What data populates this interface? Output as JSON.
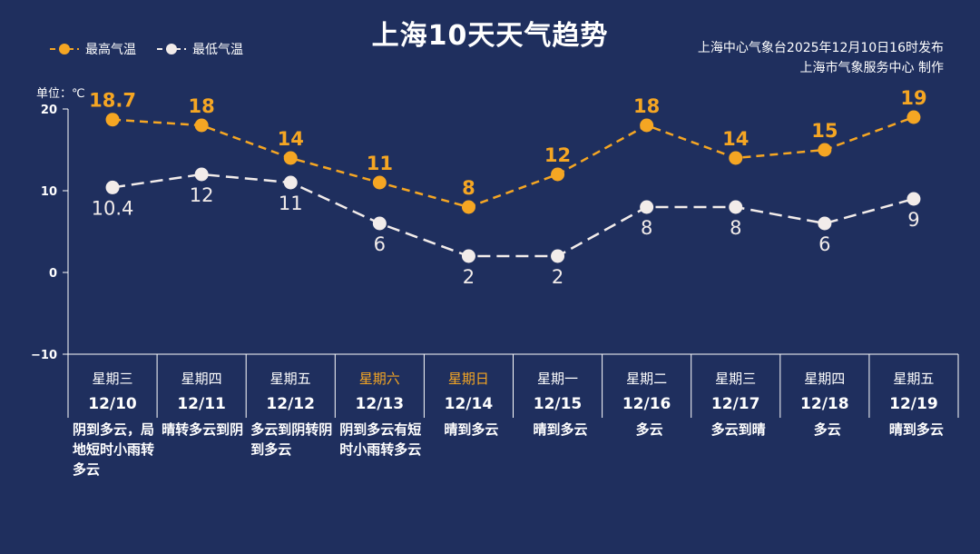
{
  "title": "上海10天天气趋势",
  "source_line1": "上海中心气象台2025年12月10日16时发布",
  "source_line2": "上海市气象服务中心 制作",
  "unit_label": "单位：℃",
  "colors": {
    "background": "#1f2f5e",
    "high": "#f5a623",
    "low": "#f2ecea",
    "text": "#ffffff",
    "weekend": "#f5a623"
  },
  "chart_data": {
    "type": "line",
    "title": "上海10天天气趋势",
    "ylabel": "单位：℃",
    "ylim": [
      -10,
      20
    ],
    "yticks": [
      "20",
      "10",
      "0",
      "−10"
    ],
    "grid": false,
    "legend_position": "top-left",
    "categories": [
      "12/10",
      "12/11",
      "12/12",
      "12/13",
      "12/14",
      "12/15",
      "12/16",
      "12/17",
      "12/18",
      "12/19"
    ],
    "series": [
      {
        "name": "最高气温",
        "color": "#f5a623",
        "values": [
          18.7,
          18,
          14,
          11,
          8,
          12,
          18,
          14,
          15,
          19
        ],
        "labels": [
          "18.7",
          "18",
          "14",
          "11",
          "8",
          "12",
          "18",
          "14",
          "15",
          "19"
        ]
      },
      {
        "name": "最低气温",
        "color": "#f2ecea",
        "values": [
          10.4,
          12,
          11,
          6,
          2,
          2,
          8,
          8,
          6,
          9
        ],
        "labels": [
          "10.4",
          "12",
          "11",
          "6",
          "2",
          "2",
          "8",
          "8",
          "6",
          "9"
        ]
      }
    ]
  },
  "days": [
    {
      "weekday": "星期三",
      "date": "12/10",
      "condition": "阴到多云，局地短时小雨转多云",
      "weekend": false
    },
    {
      "weekday": "星期四",
      "date": "12/11",
      "condition": "晴转多云到阴",
      "weekend": false
    },
    {
      "weekday": "星期五",
      "date": "12/12",
      "condition": "多云到阴转阴到多云",
      "weekend": false
    },
    {
      "weekday": "星期六",
      "date": "12/13",
      "condition": "阴到多云有短时小雨转多云",
      "weekend": true
    },
    {
      "weekday": "星期日",
      "date": "12/14",
      "condition": "晴到多云",
      "weekend": true
    },
    {
      "weekday": "星期一",
      "date": "12/15",
      "condition": "晴到多云",
      "weekend": false
    },
    {
      "weekday": "星期二",
      "date": "12/16",
      "condition": "多云",
      "weekend": false
    },
    {
      "weekday": "星期三",
      "date": "12/17",
      "condition": "多云到晴",
      "weekend": false
    },
    {
      "weekday": "星期四",
      "date": "12/18",
      "condition": "多云",
      "weekend": false
    },
    {
      "weekday": "星期五",
      "date": "12/19",
      "condition": "晴到多云",
      "weekend": false
    }
  ]
}
